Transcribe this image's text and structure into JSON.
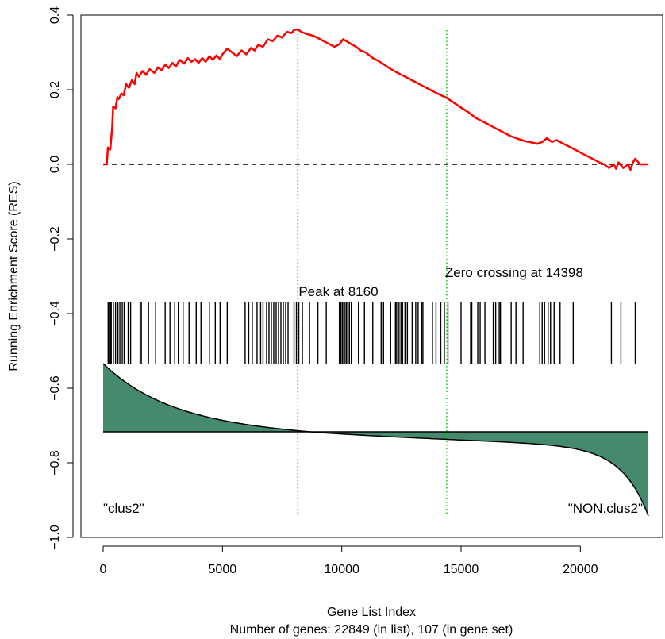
{
  "chart_data": {
    "type": "line",
    "title": "",
    "xlabel": "Gene List Index",
    "xlabel2": "Number of genes: 22849 (in list), 107 (in gene set)",
    "ylabel": "Running Enrichment Score (RES)",
    "xlim": [
      0,
      22849
    ],
    "ylim": [
      -1.0,
      0.4
    ],
    "xticks": [
      0,
      5000,
      10000,
      15000,
      20000
    ],
    "xtick_labels": [
      "0",
      "5000",
      "10000",
      "15000",
      "20000"
    ],
    "yticks": [
      -1.0,
      -0.8,
      -0.6,
      -0.4,
      -0.2,
      0.0,
      0.2,
      0.4
    ],
    "ytick_labels": [
      "−1.0",
      "−0.8",
      "−0.6",
      "−0.4",
      "−0.2",
      "0.0",
      "0.2",
      "0.4"
    ],
    "grid": false,
    "colors": {
      "res_line": "#ff0000",
      "peak_line": "#ff0000",
      "zero_crossing_line": "#00cc00",
      "metric_fill": "#468a6d",
      "axis": "#000000"
    },
    "peak": {
      "x": 8160,
      "label": "Peak at 8160"
    },
    "zero_crossing": {
      "x": 14398,
      "label": "Zero crossing at 14398"
    },
    "left_phenotype": "\"clus2\"",
    "right_phenotype": "\"NON.clus2\"",
    "series": [
      {
        "type": "line",
        "x": [
          0,
          150,
          200,
          250,
          300,
          380,
          420,
          520,
          600,
          660,
          760,
          860,
          960,
          1080,
          1200,
          1320,
          1400,
          1500,
          1650,
          1800,
          1950,
          2150,
          2300,
          2450,
          2600,
          2750,
          2900,
          3050,
          3200,
          3400,
          3550,
          3700,
          3850,
          4000,
          4150,
          4300,
          4450,
          4600,
          4750,
          4900,
          5000,
          5200,
          5400,
          5600,
          5800,
          6000,
          6200,
          6350,
          6500,
          6700,
          6900,
          7100,
          7300,
          7500,
          7700,
          7900,
          8000,
          8160,
          8300,
          8500,
          8800,
          9100,
          9400,
          9700,
          9900,
          10050,
          10200,
          10400,
          10600,
          10800,
          11000,
          11300,
          11600,
          11900,
          12200,
          12500,
          12800,
          13100,
          13400,
          13700,
          14000,
          14398,
          14700,
          15000,
          15300,
          15600,
          15900,
          16200,
          16500,
          16800,
          17100,
          17400,
          17700,
          18000,
          18200,
          18400,
          18600,
          18800,
          19000,
          19300,
          19600,
          19900,
          20200,
          20500,
          20800,
          21000,
          21200,
          21400,
          21500,
          21600,
          21800,
          22000,
          22100,
          22200,
          22300,
          22500,
          22849
        ],
        "y": [
          0.0,
          0.0,
          0.045,
          0.04,
          0.04,
          0.1,
          0.155,
          0.15,
          0.18,
          0.175,
          0.19,
          0.185,
          0.215,
          0.205,
          0.225,
          0.215,
          0.245,
          0.235,
          0.25,
          0.24,
          0.255,
          0.245,
          0.26,
          0.252,
          0.267,
          0.258,
          0.272,
          0.262,
          0.28,
          0.27,
          0.285,
          0.275,
          0.282,
          0.272,
          0.285,
          0.275,
          0.29,
          0.28,
          0.292,
          0.282,
          0.295,
          0.31,
          0.3,
          0.29,
          0.305,
          0.295,
          0.312,
          0.305,
          0.32,
          0.315,
          0.335,
          0.33,
          0.345,
          0.34,
          0.355,
          0.352,
          0.36,
          0.362,
          0.355,
          0.35,
          0.345,
          0.335,
          0.325,
          0.315,
          0.322,
          0.335,
          0.33,
          0.322,
          0.315,
          0.305,
          0.3,
          0.285,
          0.275,
          0.262,
          0.25,
          0.24,
          0.23,
          0.22,
          0.21,
          0.2,
          0.19,
          0.178,
          0.165,
          0.152,
          0.14,
          0.125,
          0.115,
          0.105,
          0.095,
          0.085,
          0.075,
          0.068,
          0.062,
          0.058,
          0.055,
          0.06,
          0.07,
          0.06,
          0.065,
          0.055,
          0.045,
          0.035,
          0.025,
          0.015,
          0.005,
          0.0,
          -0.01,
          0.0,
          -0.012,
          0.005,
          -0.01,
          0.0,
          -0.015,
          0.005,
          0.015,
          0.0,
          0.0
        ]
      }
    ],
    "hits": [
      210,
      260,
      300,
      340,
      430,
      520,
      620,
      700,
      800,
      880,
      1050,
      1150,
      1550,
      1600,
      1900,
      2200,
      2600,
      2800,
      3000,
      3150,
      3350,
      3600,
      3900,
      4100,
      4450,
      4700,
      4900,
      5200,
      5950,
      6100,
      6250,
      6450,
      6600,
      6700,
      6850,
      6950,
      7050,
      7150,
      7250,
      7350,
      7450,
      7550,
      7650,
      7750,
      8000,
      8100,
      8200,
      8350,
      8650,
      9000,
      9350,
      9900,
      9960,
      10020,
      10080,
      10140,
      10200,
      10260,
      10320,
      10400,
      10700,
      10950,
      11300,
      11650,
      11750,
      12050,
      12250,
      12300,
      12400,
      12480,
      12550,
      12650,
      12750,
      12950,
      13100,
      13200,
      13350,
      13400,
      13800,
      13950,
      14150,
      14300,
      14450,
      15000,
      15400,
      15450,
      15700,
      15800,
      16000,
      16350,
      16450,
      16600,
      16650,
      17100,
      17300,
      17600,
      18300,
      18400,
      18500,
      18650,
      18750,
      18900,
      19150,
      19700,
      21300,
      21700,
      22300
    ]
  }
}
